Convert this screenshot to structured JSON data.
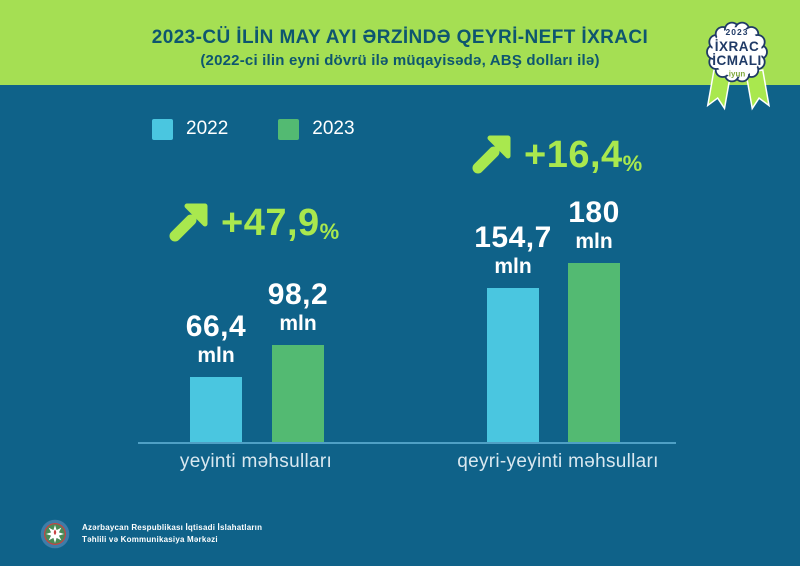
{
  "header": {
    "title": "2023-CÜ İLİN MAY AYI ƏRZİNDƏ QEYRİ-NEFT İXRACI",
    "subtitle": "(2022-ci ilin eyni dövrü ilə müqayisədə, ABŞ dolları ilə)"
  },
  "badge": {
    "year": "2023",
    "title_line1": "İXRAC",
    "title_line2": "İCMALI",
    "month": "iyun"
  },
  "legend": {
    "items": [
      {
        "label": "2022",
        "color": "#4ac6e0"
      },
      {
        "label": "2023",
        "color": "#53ba72"
      }
    ]
  },
  "chart_data": {
    "type": "bar",
    "title": "2023-cü ilin may ayı ərzində qeyri-neft ixracı",
    "subtitle": "2022-ci ilin eyni dövrü ilə müqayisədə, ABŞ dolları ilə",
    "categories": [
      "yeyinti məhsulları",
      "qeyri-yeyinti məhsulları"
    ],
    "series": [
      {
        "name": "2022",
        "color": "#4ac6e0",
        "values": [
          66.4,
          154.7
        ]
      },
      {
        "name": "2023",
        "color": "#53ba72",
        "values": [
          98.2,
          180
        ]
      }
    ],
    "unit": "mln",
    "growth_percent": [
      47.9,
      16.4
    ],
    "growth_labels": [
      "+47,9",
      "+16,4"
    ],
    "ylim": [
      0,
      190
    ],
    "gridlines": false,
    "legend_position": "top-left"
  },
  "groups": [
    {
      "category": "yeyinti məhsulları",
      "growth": "+47,9",
      "percent": "%",
      "bars": [
        {
          "series": "2022",
          "label": "66,4",
          "unit": "mln",
          "value": 66.4
        },
        {
          "series": "2023",
          "label": "98,2",
          "unit": "mln",
          "value": 98.2
        }
      ]
    },
    {
      "category": "qeyri-yeyinti məhsulları",
      "growth": "+16,4",
      "percent": "%",
      "bars": [
        {
          "series": "2022",
          "label": "154,7",
          "unit": "mln",
          "value": 154.7
        },
        {
          "series": "2023",
          "label": "180",
          "unit": "mln",
          "value": 180
        }
      ]
    }
  ],
  "footer": {
    "org_line1": "Azərbaycan Respublikası İqtisadi İslahatların",
    "org_line2": "Təhlili və Kommunikasiya Mərkəzi"
  },
  "colors": {
    "background_teal": "#0f6289",
    "band_green": "#a5df53",
    "accent_green": "#a9e84e",
    "bar_blue": "#4ac6e0",
    "bar_green": "#53ba72",
    "title_text": "#0e566f",
    "badge_navy": "#1f3a66",
    "badge_month_green": "#7fa93d",
    "baseline": "#4fa0c5"
  }
}
